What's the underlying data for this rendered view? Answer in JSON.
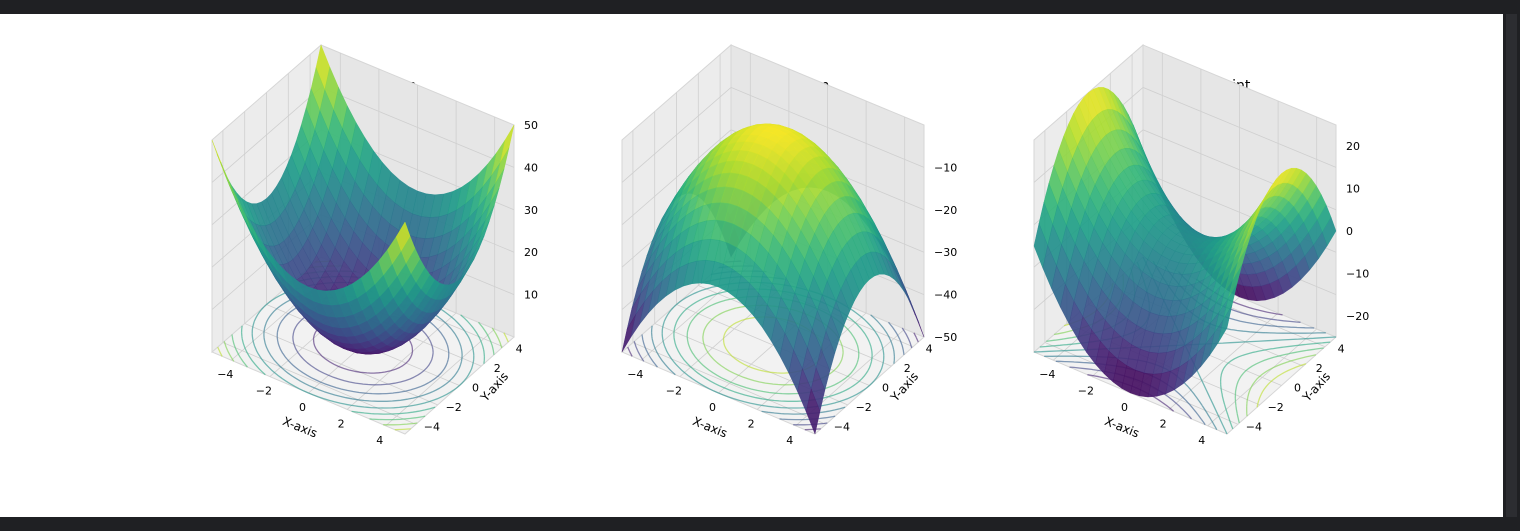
{
  "figure": {
    "background": "#ffffff",
    "colormap": "viridis"
  },
  "chart_data": [
    {
      "type": "surface3d",
      "title": "Unique Minimum",
      "function": "z = x^2 + y^2",
      "xlabel": "X-axis",
      "ylabel": "Y-axis",
      "zlabel": "",
      "xlim": [
        -5,
        5
      ],
      "ylim": [
        -5,
        5
      ],
      "zlim": [
        0,
        50
      ],
      "x_ticks": [
        "−4",
        "−2",
        "0",
        "2",
        "4"
      ],
      "y_ticks": [
        "−4",
        "−2",
        "0",
        "2",
        "4"
      ],
      "z_ticks": [
        "10",
        "20",
        "30",
        "40",
        "50"
      ],
      "contour_offset": "floor",
      "grid": true
    },
    {
      "type": "surface3d",
      "title": "Unique Maximum",
      "function": "z = -(x^2 + y^2)",
      "xlabel": "X-axis",
      "ylabel": "Y-axis",
      "zlabel": "",
      "xlim": [
        -5,
        5
      ],
      "ylim": [
        -5,
        5
      ],
      "zlim": [
        -50,
        0
      ],
      "x_ticks": [
        "−4",
        "−2",
        "0",
        "2",
        "4"
      ],
      "y_ticks": [
        "−4",
        "−2",
        "0",
        "2",
        "4"
      ],
      "z_ticks": [
        "−10",
        "−20",
        "−30",
        "−40",
        "−50"
      ],
      "contour_offset": "floor",
      "grid": true
    },
    {
      "type": "surface3d",
      "title": "Unique Saddle Point",
      "function": "z = x^2 - y^2",
      "xlabel": "X-axis",
      "ylabel": "Y-axis",
      "zlabel": "",
      "xlim": [
        -5,
        5
      ],
      "ylim": [
        -5,
        5
      ],
      "zlim": [
        -25,
        25
      ],
      "x_ticks": [
        "−4",
        "−2",
        "0",
        "2",
        "4"
      ],
      "y_ticks": [
        "−4",
        "−2",
        "0",
        "2",
        "4"
      ],
      "z_ticks": [
        "20",
        "10",
        "0",
        "−10",
        "−20"
      ],
      "contour_offset": "floor",
      "grid": true
    }
  ]
}
